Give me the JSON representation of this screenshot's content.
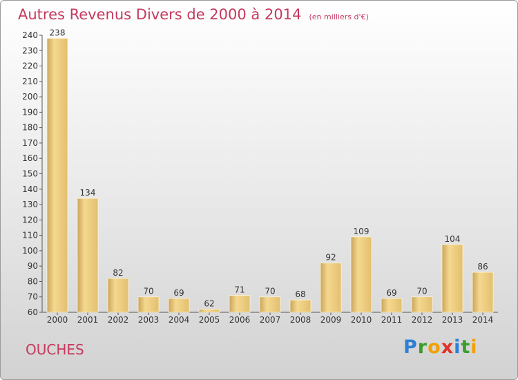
{
  "chart_data": {
    "type": "bar",
    "title": "Autres Revenus Divers de 2000 à 2014",
    "unit": "(en milliers d'€)",
    "categories": [
      "2000",
      "2001",
      "2002",
      "2003",
      "2004",
      "2005",
      "2006",
      "2007",
      "2008",
      "2009",
      "2010",
      "2011",
      "2012",
      "2013",
      "2014"
    ],
    "values": [
      238,
      134,
      82,
      70,
      69,
      62,
      71,
      70,
      68,
      92,
      109,
      69,
      70,
      104,
      86
    ],
    "ylim": [
      60,
      240
    ],
    "yticks": [
      60,
      70,
      80,
      90,
      100,
      110,
      120,
      130,
      140,
      150,
      160,
      170,
      180,
      190,
      200,
      210,
      220,
      230,
      240
    ],
    "xlabel": "",
    "ylabel": "",
    "grid": false,
    "bar_color": "#e8c777"
  },
  "commune": "OUCHES",
  "brand_letters": [
    "P",
    "r",
    "o",
    "x",
    "i",
    "t",
    "i"
  ]
}
